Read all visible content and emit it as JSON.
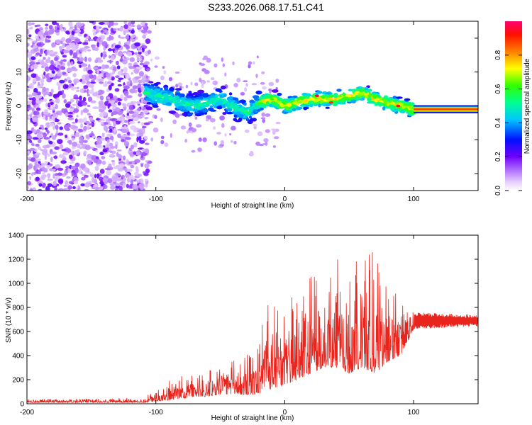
{
  "title": "S233.2026.068.17.51.C41",
  "chart_data": [
    {
      "type": "heatmap",
      "xlabel": "Height of straight line (km)",
      "ylabel": "Frequency (Hz)",
      "xlim": [
        -200,
        150
      ],
      "ylim": [
        -25,
        25
      ],
      "xticks": [
        -200,
        -100,
        0,
        100
      ],
      "yticks": [
        -20,
        -10,
        0,
        10,
        20
      ],
      "colorbar": {
        "label": "Normalized spectral amplitude",
        "range": [
          0.0,
          1.0
        ],
        "ticks": [
          "0.0",
          "0.2",
          "0.4",
          "0.6",
          "0.8"
        ],
        "colors": [
          "#ffffff",
          "#e6cffd",
          "#8000ff",
          "#0000ff",
          "#00c8ff",
          "#00ff80",
          "#40ff00",
          "#ffff00",
          "#ff8000",
          "#ff0000",
          "#ff0080"
        ]
      },
      "ridge": {
        "x": [
          -110,
          -100,
          -90,
          -80,
          -70,
          -60,
          -50,
          -40,
          -30,
          -20,
          -10,
          0,
          10,
          20,
          30,
          40,
          50,
          60,
          70,
          80,
          90,
          100,
          150
        ],
        "y": [
          4,
          3,
          2,
          1,
          0,
          1,
          2,
          0,
          -2,
          1,
          2,
          0,
          1,
          2,
          2,
          2,
          3,
          4,
          2,
          1,
          0,
          -1,
          -1
        ]
      }
    },
    {
      "type": "line",
      "xlabel": "Height of straight line (km)",
      "ylabel": "SNR (10 * v/v)",
      "xlim": [
        -200,
        150
      ],
      "ylim": [
        0,
        1400
      ],
      "xticks": [
        -200,
        -100,
        0,
        100
      ],
      "yticks": [
        0,
        200,
        400,
        600,
        800,
        1000,
        1200,
        1400
      ],
      "color": "#e8241c",
      "envelope": {
        "x": [
          -200,
          -110,
          -100,
          -90,
          -80,
          -70,
          -60,
          -50,
          -40,
          -30,
          -20,
          -15,
          -10,
          0,
          10,
          20,
          30,
          40,
          50,
          60,
          70,
          80,
          90,
          100,
          150
        ],
        "low": [
          10,
          10,
          20,
          30,
          40,
          60,
          60,
          70,
          80,
          70,
          80,
          100,
          120,
          150,
          200,
          250,
          300,
          300,
          250,
          300,
          250,
          350,
          400,
          620,
          640
        ],
        "high": [
          40,
          50,
          110,
          200,
          230,
          260,
          280,
          330,
          360,
          400,
          530,
          800,
          900,
          900,
          900,
          1050,
          1150,
          1200,
          1250,
          1300,
          1250,
          1050,
          850,
          760,
          740
        ]
      }
    }
  ]
}
